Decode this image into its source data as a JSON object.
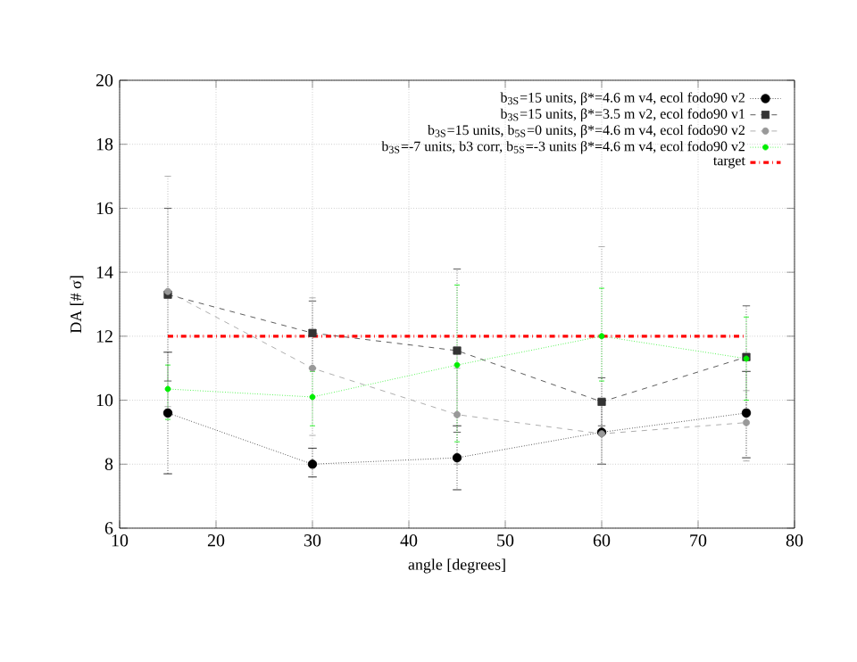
{
  "chart_data": {
    "type": "line",
    "xlabel": "angle [degrees]",
    "ylabel": "DA [# σ]",
    "xlim": [
      10,
      80
    ],
    "ylim": [
      6,
      20
    ],
    "xticks": [
      10,
      20,
      30,
      40,
      50,
      60,
      70,
      80
    ],
    "yticks": [
      6,
      8,
      10,
      12,
      14,
      16,
      18,
      20
    ],
    "grid": true,
    "legend": "top right",
    "x": [
      15,
      30,
      45,
      60,
      75
    ],
    "series": [
      {
        "name": "b$_{3S}$=15 units, β*=4.6 m v4, ecol fodo90 v2",
        "color": "#000000",
        "marker": "circle",
        "line_style": "dotted",
        "values": [
          9.6,
          8.0,
          8.2,
          9.0,
          9.6
        ],
        "errors": [
          [
            7.7,
            11.5
          ],
          [
            7.6,
            8.5
          ],
          [
            7.2,
            9.2
          ],
          [
            8.0,
            10.0
          ],
          [
            8.2,
            10.9
          ]
        ]
      },
      {
        "name": "b$_{3S}$=15 units, β*=3.5 m v2, ecol fodo90 v1",
        "color": "#333333",
        "marker": "square",
        "line_style": "dashed",
        "values": [
          13.3,
          12.1,
          11.55,
          9.95,
          11.35
        ],
        "errors": [
          [
            10.6,
            16.0
          ],
          [
            11.0,
            13.1
          ],
          [
            9.0,
            14.1
          ],
          [
            9.2,
            10.7
          ],
          [
            9.7,
            12.95
          ]
        ]
      },
      {
        "name": "b$_{3S}$=15 units, b$_{5S}$=0 units, β*=4.6 m v4, ecol fodo90 v2",
        "color": "#999999",
        "marker": "circle",
        "line_style": "dashed",
        "values": [
          13.4,
          11.0,
          9.55,
          8.95,
          9.3
        ],
        "errors": [
          [
            9.8,
            17.0
          ],
          [
            8.9,
            13.2
          ],
          [
            8.0,
            11.0
          ],
          [
            8.0,
            14.8
          ],
          [
            8.1,
            10.3
          ]
        ]
      },
      {
        "name": "b$_{3S}$=-7 units, b3 corr, b$_{5S}$=-3 units β*=4.6 m v4, ecol fodo90 v2",
        "color": "#00ee00",
        "marker": "circle",
        "line_style": "dotted",
        "values": [
          10.35,
          10.1,
          11.1,
          12.0,
          11.3
        ],
        "errors": [
          [
            9.4,
            11.1
          ],
          [
            9.2,
            10.9
          ],
          [
            8.7,
            13.6
          ],
          [
            10.6,
            13.5
          ],
          [
            10.0,
            12.6
          ]
        ]
      },
      {
        "name": "target",
        "color": "#ff0000",
        "marker": "none",
        "line_style": "dashdotted",
        "values": [
          12,
          12,
          12,
          12,
          12
        ]
      }
    ]
  }
}
